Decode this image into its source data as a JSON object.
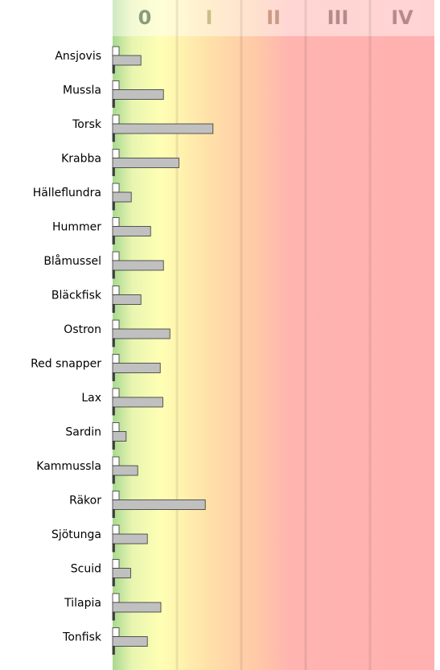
{
  "chart_data": {
    "type": "hbar",
    "zones": [
      "0",
      "I",
      "II",
      "III",
      "IV"
    ],
    "zone_colors": [
      "#8c9a7c",
      "#c9c08a",
      "#c99a86",
      "#b58a8a",
      "#b58a8a"
    ],
    "categories": [
      "Ansjovis",
      "Mussla",
      "Torsk",
      "Krabba",
      "Hälleflundra",
      "Hummer",
      "Blåmussel",
      "Bläckfisk",
      "Ostron",
      "Red snapper",
      "Lax",
      "Sardin",
      "Kammussla",
      "Räkor",
      "Sjötunga",
      "Scuid",
      "Tilapia",
      "Tonfisk"
    ],
    "xlim": [
      0,
      5
    ],
    "series": [
      {
        "color": "#ffffff",
        "values": [
          0.1,
          0.1,
          0.1,
          0.1,
          0.1,
          0.1,
          0.1,
          0.1,
          0.1,
          0.1,
          0.1,
          0.1,
          0.1,
          0.1,
          0.1,
          0.1,
          0.1,
          0.1
        ]
      },
      {
        "color": "#c0c0c0",
        "values": [
          0.44,
          0.79,
          1.56,
          1.03,
          0.29,
          0.59,
          0.79,
          0.44,
          0.89,
          0.74,
          0.78,
          0.21,
          0.39,
          1.44,
          0.54,
          0.28,
          0.75,
          0.54
        ]
      },
      {
        "color": "#404040",
        "values": [
          0.03,
          0.03,
          0.03,
          0.03,
          0.03,
          0.03,
          0.03,
          0.03,
          0.03,
          0.03,
          0.03,
          0.03,
          0.03,
          0.03,
          0.03,
          0.03,
          0.03,
          0.03
        ]
      }
    ]
  }
}
